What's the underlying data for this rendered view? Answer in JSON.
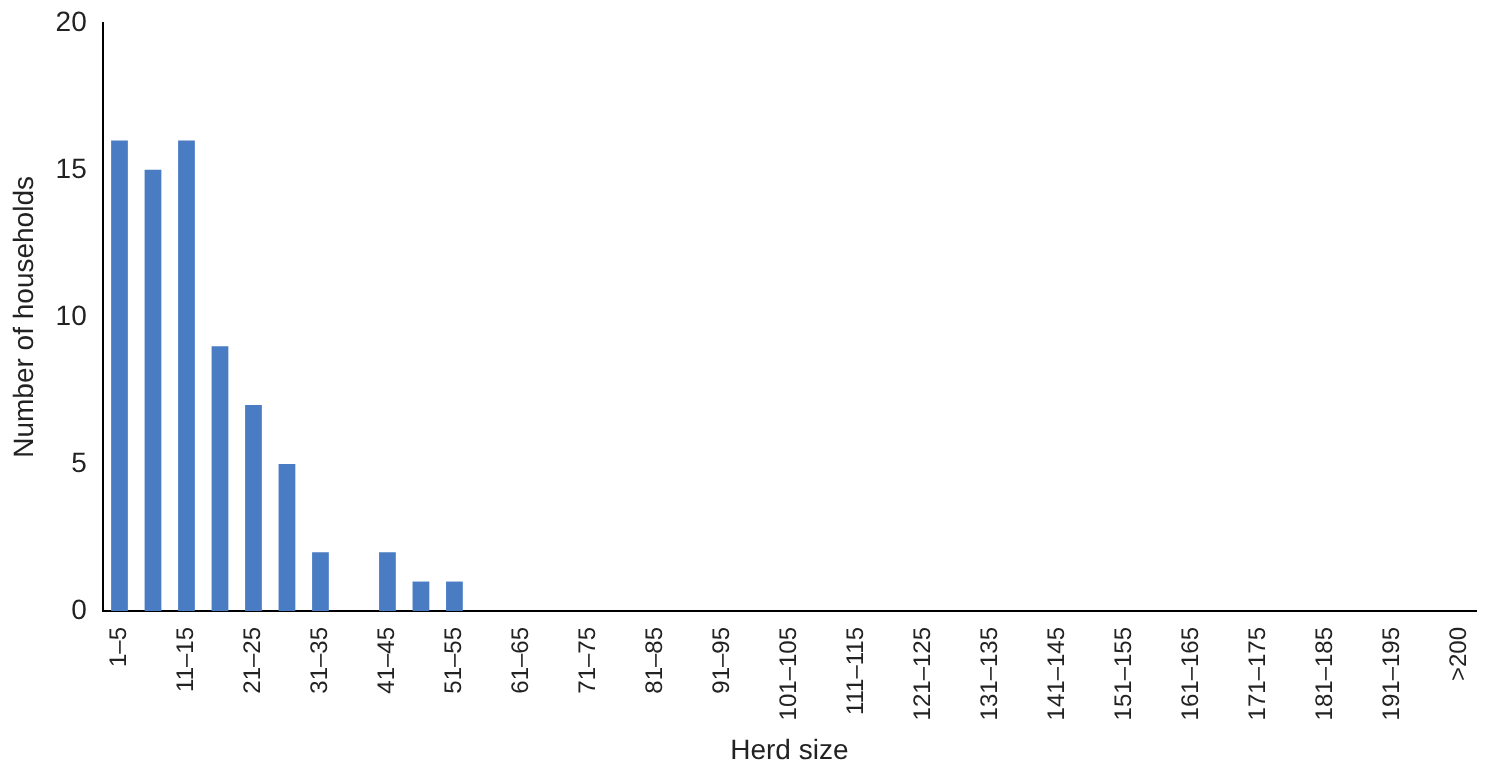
{
  "chart_data": {
    "type": "bar",
    "xlabel": "Herd size",
    "ylabel": "Number of households",
    "categories": [
      "1–5",
      null,
      "11–15",
      null,
      "21–25",
      null,
      "31–35",
      null,
      "41–45",
      null,
      "51–55",
      null,
      "61–65",
      null,
      "71–75",
      null,
      "81–85",
      null,
      "91–95",
      null,
      "101–105",
      null,
      "111–115",
      null,
      "121–125",
      null,
      "131–135",
      null,
      "141–145",
      null,
      "151–155",
      null,
      "161–165",
      null,
      "171–175",
      null,
      "181–185",
      null,
      "191–195",
      null,
      ">200"
    ],
    "values": [
      16,
      15,
      16,
      9,
      7,
      5,
      2,
      0,
      2,
      1,
      1,
      0,
      0,
      0,
      0,
      0,
      0,
      0,
      0,
      0,
      0,
      0,
      0,
      0,
      0,
      0,
      0,
      0,
      0,
      0,
      0,
      0,
      0,
      0,
      0,
      0,
      0,
      0,
      0,
      0,
      0
    ],
    "color": "#4a7cc4",
    "ylim": [
      0,
      20
    ],
    "yticks": [
      0,
      5,
      10,
      15,
      20
    ],
    "grid": false,
    "legend": false
  }
}
